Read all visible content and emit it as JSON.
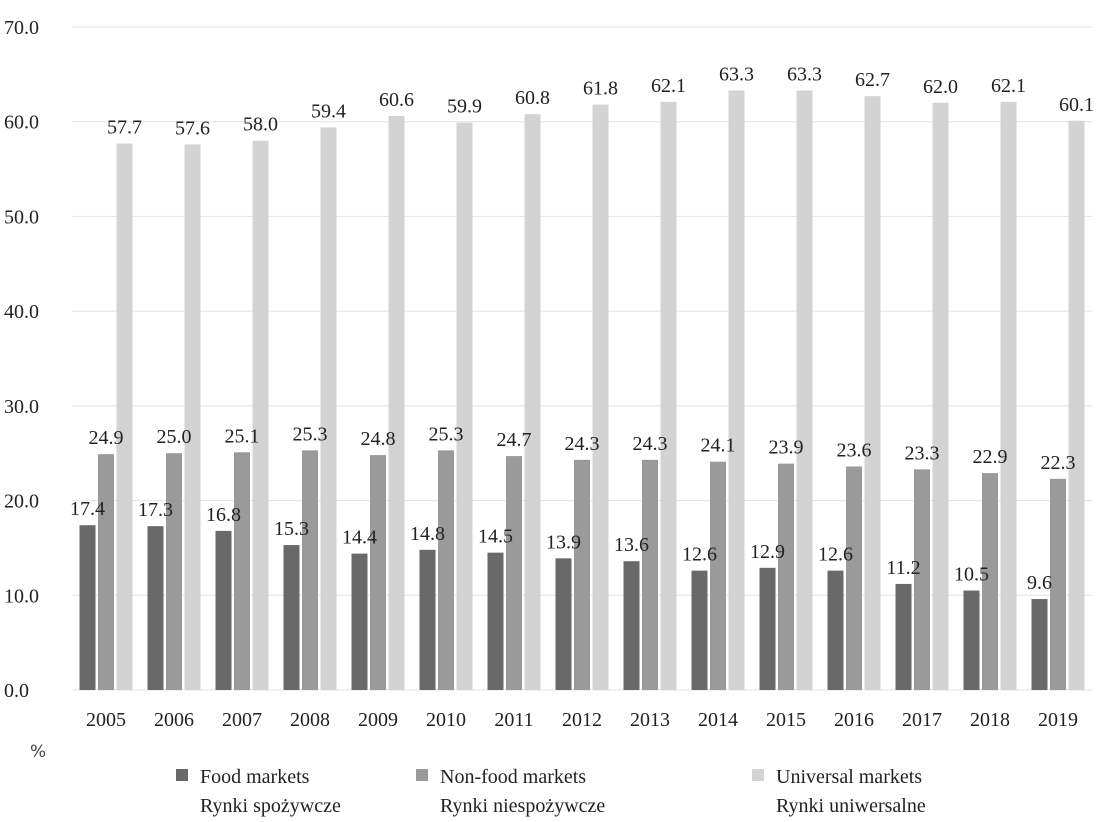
{
  "chart_data": {
    "type": "bar",
    "categories": [
      "2005",
      "2006",
      "2007",
      "2008",
      "2009",
      "2010",
      "2011",
      "2012",
      "2013",
      "2014",
      "2015",
      "2016",
      "2017",
      "2018",
      "2019"
    ],
    "series": [
      {
        "name": "Food markets",
        "name_pl": "Rynki spożywcze",
        "color": "#696969",
        "values": [
          17.4,
          17.3,
          16.8,
          15.3,
          14.4,
          14.8,
          14.5,
          13.9,
          13.6,
          12.6,
          12.9,
          12.6,
          11.2,
          10.5,
          9.6
        ]
      },
      {
        "name": "Non-food markets",
        "name_pl": "Rynki niespożywcze",
        "color": "#9a9a9a",
        "values": [
          24.9,
          25.0,
          25.1,
          25.3,
          24.8,
          25.3,
          24.7,
          24.3,
          24.3,
          24.1,
          23.9,
          23.6,
          23.3,
          22.9,
          22.3
        ]
      },
      {
        "name": "Universal markets",
        "name_pl": "Rynki uniwersalne",
        "color": "#d3d3d3",
        "values": [
          57.7,
          57.6,
          58.0,
          59.4,
          60.6,
          59.9,
          60.8,
          61.8,
          62.1,
          63.3,
          63.3,
          62.7,
          62.0,
          62.1,
          60.1
        ]
      }
    ],
    "yticks": [
      "0.0",
      "10.0",
      "20.0",
      "30.0",
      "40.0",
      "50.0",
      "60.0",
      "70.0"
    ],
    "ylim": [
      0,
      70
    ],
    "unit_label": "%",
    "grid": true,
    "legend_position": "bottom"
  }
}
